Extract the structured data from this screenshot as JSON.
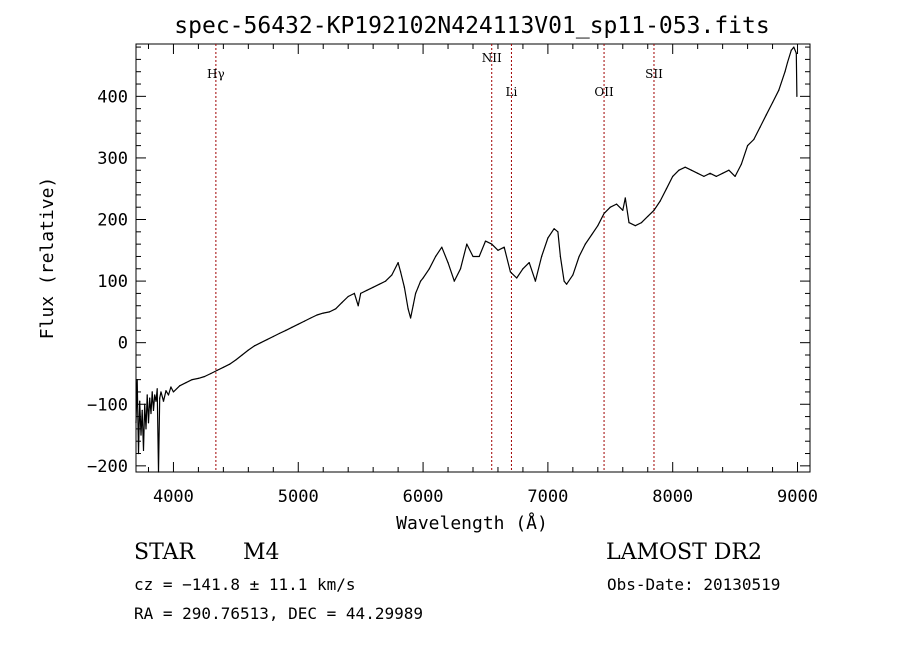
{
  "chart_data": {
    "type": "line",
    "title": "spec-56432-KP192102N424113V01_sp11-053.fits",
    "xlabel": "Wavelength (Å)",
    "ylabel": "Flux (relative)",
    "xlim": [
      3700,
      9100
    ],
    "ylim": [
      -210,
      485
    ],
    "xticks": [
      4000,
      5000,
      6000,
      7000,
      8000,
      9000
    ],
    "yticks": [
      -200,
      -100,
      0,
      100,
      200,
      300,
      400
    ],
    "series": [
      {
        "x": [
          3700,
          3710,
          3720,
          3730,
          3740,
          3750,
          3760,
          3770,
          3780,
          3790,
          3800,
          3810,
          3820,
          3830,
          3840,
          3850,
          3860,
          3870,
          3880,
          3890,
          3900,
          3920,
          3940,
          3960,
          3980,
          4000,
          4050,
          4100,
          4150,
          4200,
          4250,
          4300,
          4350,
          4400,
          4450,
          4500,
          4550,
          4600,
          4650,
          4700,
          4750,
          4800,
          4850,
          4900,
          4950,
          5000,
          5050,
          5100,
          5150,
          5200,
          5250,
          5300,
          5350,
          5400,
          5450,
          5480,
          5500,
          5550,
          5600,
          5650,
          5700,
          5750,
          5800,
          5820,
          5850,
          5880,
          5900,
          5920,
          5940,
          5960,
          5980,
          6000,
          6050,
          6100,
          6150,
          6200,
          6250,
          6300,
          6350,
          6400,
          6450,
          6500,
          6550,
          6600,
          6650,
          6700,
          6750,
          6800,
          6850,
          6900,
          6950,
          7000,
          7050,
          7080,
          7100,
          7130,
          7150,
          7200,
          7250,
          7300,
          7350,
          7400,
          7450,
          7500,
          7550,
          7600,
          7620,
          7650,
          7700,
          7750,
          7800,
          7850,
          7900,
          7950,
          8000,
          8050,
          8100,
          8150,
          8200,
          8250,
          8300,
          8350,
          8400,
          8450,
          8500,
          8550,
          8600,
          8650,
          8700,
          8750,
          8800,
          8850,
          8900,
          8920,
          8950,
          8970,
          8990,
          8995
        ],
        "values": [
          -130,
          -60,
          -180,
          -95,
          -150,
          -110,
          -175,
          -100,
          -140,
          -85,
          -130,
          -90,
          -115,
          -80,
          -110,
          -85,
          -95,
          -75,
          -210,
          -90,
          -80,
          -95,
          -78,
          -85,
          -72,
          -80,
          -70,
          -65,
          -60,
          -58,
          -55,
          -50,
          -45,
          -40,
          -35,
          -28,
          -20,
          -12,
          -5,
          0,
          5,
          10,
          15,
          20,
          25,
          30,
          35,
          40,
          45,
          48,
          50,
          55,
          65,
          75,
          80,
          60,
          80,
          85,
          90,
          95,
          100,
          110,
          130,
          115,
          90,
          55,
          40,
          60,
          80,
          90,
          100,
          105,
          120,
          140,
          155,
          130,
          100,
          120,
          160,
          140,
          140,
          165,
          160,
          150,
          155,
          115,
          105,
          120,
          130,
          100,
          140,
          170,
          185,
          180,
          140,
          100,
          95,
          110,
          140,
          160,
          175,
          190,
          210,
          220,
          225,
          215,
          235,
          195,
          190,
          195,
          205,
          215,
          230,
          250,
          270,
          280,
          285,
          280,
          275,
          270,
          275,
          270,
          275,
          280,
          270,
          290,
          320,
          330,
          350,
          370,
          390,
          410,
          440,
          455,
          475,
          480,
          470,
          400
        ]
      }
    ],
    "lines": [
      {
        "label": "Hγ",
        "x": 4340
      },
      {
        "label": "NII",
        "x": 6550
      },
      {
        "label": "Li",
        "x": 6708
      },
      {
        "label": "OII",
        "x": 7450
      },
      {
        "label": "SII",
        "x": 7850
      }
    ]
  },
  "info": {
    "object_class": "STAR",
    "subclass": "M4",
    "survey": "LAMOST DR2",
    "cz": "cz = −141.8 ± 11.1 km/s",
    "obs_date": "Obs-Date: 20130519",
    "coords": "RA = 290.76513, DEC =  44.29989"
  }
}
